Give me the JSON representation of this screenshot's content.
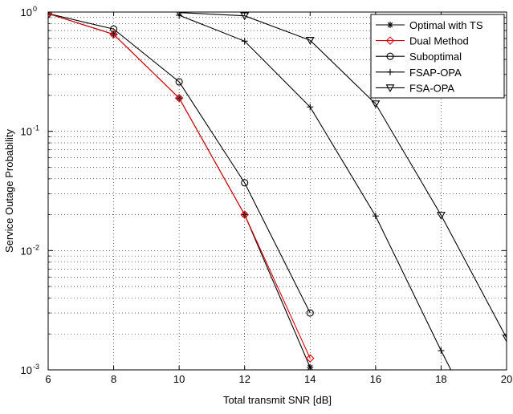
{
  "chart_data": {
    "type": "line",
    "title": "",
    "xlabel": "Total transmit SNR [dB]",
    "ylabel": "Service Outage Probability",
    "xlim": [
      6,
      20
    ],
    "ylim": [
      0.001,
      1
    ],
    "yscale": "log",
    "grid": true,
    "legend_position": "top-right",
    "x_ticks": [
      6,
      8,
      10,
      12,
      14,
      16,
      18,
      20
    ],
    "x_tick_labels": [
      "6",
      "8",
      "10",
      "12",
      "14",
      "16",
      "18",
      "20"
    ],
    "y_ticks": [
      0.001,
      0.01,
      0.1,
      1
    ],
    "y_tick_labels": [
      {
        "base": "10",
        "exp": "-3"
      },
      {
        "base": "10",
        "exp": "-2"
      },
      {
        "base": "10",
        "exp": "-1"
      },
      {
        "base": "10",
        "exp": "0"
      }
    ],
    "series": [
      {
        "name": "Optimal with TS",
        "marker": "asterisk",
        "color": "#000000",
        "x": [
          6,
          8,
          10,
          12,
          14
        ],
        "y": [
          0.97,
          0.65,
          0.19,
          0.02,
          0.00105
        ]
      },
      {
        "name": "Dual Method",
        "marker": "diamond",
        "color": "#e0000a",
        "x": [
          6,
          8,
          10,
          12,
          14
        ],
        "y": [
          0.97,
          0.65,
          0.19,
          0.02,
          0.00125
        ]
      },
      {
        "name": "Suboptimal",
        "marker": "circle",
        "color": "#000000",
        "x": [
          6,
          8,
          10,
          12,
          14
        ],
        "y": [
          0.97,
          0.72,
          0.26,
          0.037,
          0.003
        ]
      },
      {
        "name": "FSAP-OPA",
        "marker": "plus",
        "color": "#000000",
        "x": [
          10,
          12,
          14,
          16,
          18,
          18.3
        ],
        "y": [
          0.94,
          0.57,
          0.16,
          0.0195,
          0.00145,
          0.001
        ]
      },
      {
        "name": "FSA-OPA",
        "marker": "triangle-down",
        "color": "#000000",
        "x": [
          10,
          12,
          14,
          16,
          18,
          20
        ],
        "y": [
          0.99,
          0.93,
          0.58,
          0.17,
          0.0198,
          0.00185
        ],
        "marker_x": [
          10,
          12,
          14,
          16,
          18,
          20
        ]
      }
    ]
  }
}
